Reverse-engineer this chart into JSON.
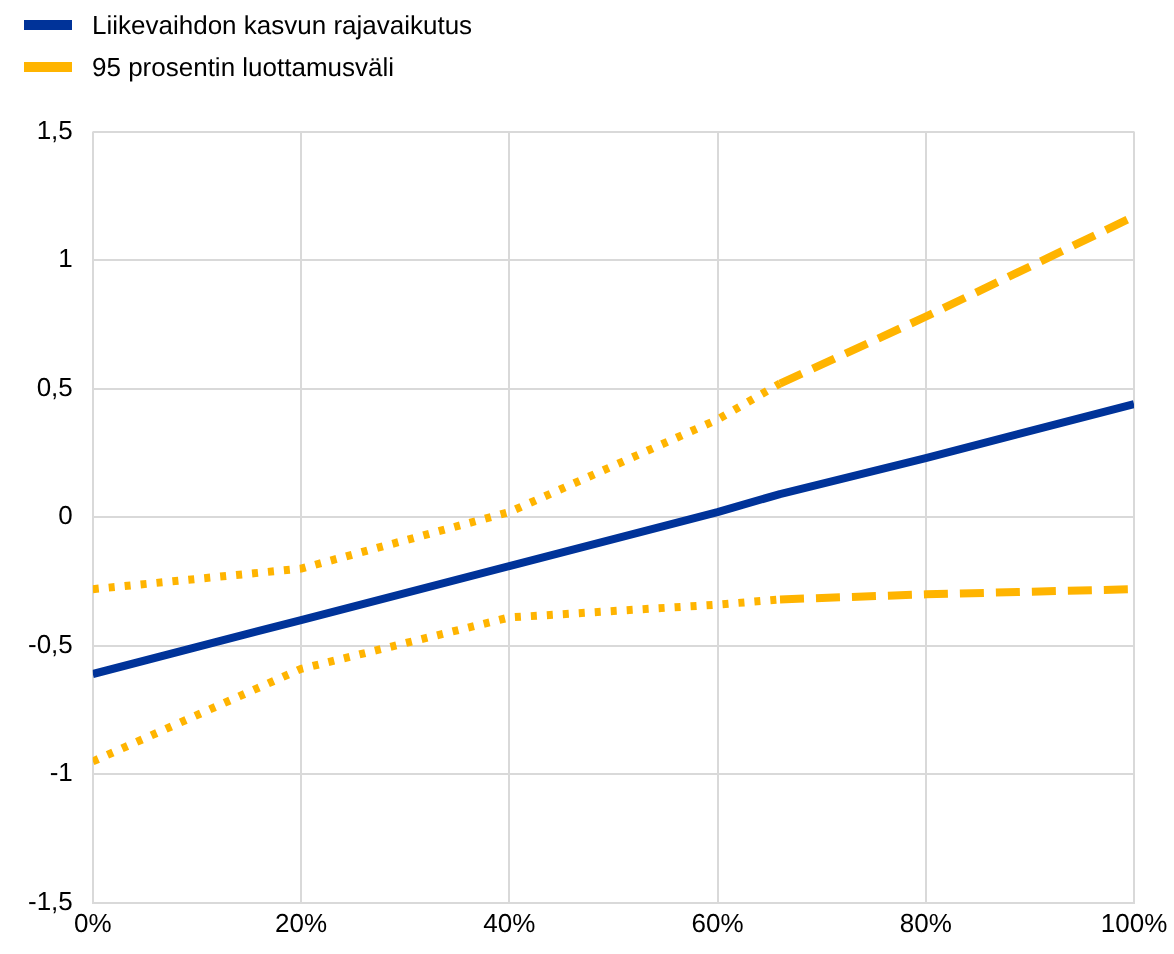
{
  "chart_data": {
    "type": "line",
    "x": [
      0,
      20,
      40,
      60,
      66,
      80,
      100
    ],
    "series": [
      {
        "name": "Liikevaihdon kasvun rajavaikutus",
        "color": "#003399",
        "line_style": "solid",
        "values": [
          -0.61,
          -0.4,
          -0.19,
          0.02,
          0.09,
          0.23,
          0.44
        ]
      },
      {
        "name": "95 prosentin luottamusväli",
        "color": "#ffb400",
        "line_style": [
          "dotted",
          "dotted",
          "dotted",
          "dotted",
          "dashed",
          "dashed"
        ],
        "values": [
          -0.28,
          -0.2,
          0.02,
          0.38,
          0.52,
          0.78,
          1.17
        ]
      },
      {
        "color": "#ffb400",
        "line_style": [
          "dotted",
          "dotted",
          "dotted",
          "dotted",
          "dashed",
          "dashed"
        ],
        "values": [
          -0.95,
          -0.59,
          -0.39,
          -0.34,
          -0.32,
          -0.3,
          -0.28
        ]
      }
    ],
    "xlim": [
      0,
      100
    ],
    "xticks": [
      {
        "value": 0,
        "label": "0%"
      },
      {
        "value": 20,
        "label": "20%"
      },
      {
        "value": 40,
        "label": "40%"
      },
      {
        "value": 60,
        "label": "60%"
      },
      {
        "value": 80,
        "label": "80%"
      },
      {
        "value": 100,
        "label": "100%"
      }
    ],
    "ylim": [
      -1.5,
      1.5
    ],
    "yticks": [
      {
        "value": -1.5,
        "label": "-1,5"
      },
      {
        "value": -1,
        "label": "-1"
      },
      {
        "value": -0.5,
        "label": "-0,5"
      },
      {
        "value": 0,
        "label": "0"
      },
      {
        "value": 0.5,
        "label": "0,5"
      },
      {
        "value": 1,
        "label": "1"
      },
      {
        "value": 1.5,
        "label": "1,5"
      }
    ],
    "grid": true,
    "legend": "top left",
    "marker": "none"
  }
}
